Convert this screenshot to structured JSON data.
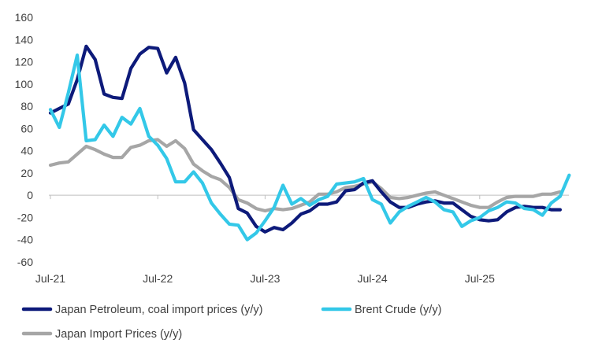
{
  "chart_data": {
    "type": "line",
    "title": "",
    "xlabel": "",
    "ylabel": "",
    "ylim": [
      -60,
      160
    ],
    "yticks": [
      160,
      140,
      120,
      100,
      80,
      60,
      40,
      20,
      0,
      -20,
      -40,
      -60
    ],
    "xticks": [
      {
        "label": "Jul-21",
        "x": 0
      },
      {
        "label": "Jul-22",
        "x": 12
      },
      {
        "label": "Jul-23",
        "x": 24
      },
      {
        "label": "Jul-24",
        "x": 36
      },
      {
        "label": "Jul-25",
        "x": 48
      }
    ],
    "x_range": [
      0,
      56
    ],
    "legend": [
      {
        "name": "Japan Petroleum, coal import prices (y/y)",
        "color": "#0d1a7a"
      },
      {
        "name": "Brent Crude (y/y)",
        "color": "#33c8e8"
      },
      {
        "name": "Japan Import Prices (y/y)",
        "color": "#a6a6a6"
      }
    ],
    "series": [
      {
        "name": "Japan Petroleum, coal import prices (y/y)",
        "color": "#0d1a7a",
        "x_start": 0,
        "values": [
          74,
          78,
          82,
          104,
          134,
          122,
          91,
          88,
          87,
          114,
          127,
          133,
          132,
          110,
          124,
          101,
          59,
          50,
          41,
          29,
          16,
          -12,
          -16,
          -28,
          -33,
          -29,
          -31,
          -25,
          -17,
          -14,
          -8,
          -8,
          -6,
          4,
          5,
          11,
          13,
          3,
          -6,
          -11,
          -11,
          -8,
          -6,
          -5,
          -7,
          -7,
          -13,
          -19,
          -22,
          -23,
          -22,
          -15,
          -11,
          -10,
          -11,
          -11,
          -13,
          -13
        ]
      },
      {
        "name": "Brent Crude (y/y)",
        "color": "#33c8e8",
        "x_start": 0,
        "values": [
          77,
          61,
          92,
          126,
          49,
          50,
          63,
          53,
          70,
          64,
          78,
          53,
          45,
          33,
          12,
          12,
          21,
          11,
          -7,
          -17,
          -26,
          -27,
          -40,
          -34,
          -23,
          -11,
          9,
          -8,
          -3,
          -9,
          -4,
          -1,
          10,
          11,
          12,
          15,
          -4,
          -8,
          -25,
          -15,
          -10,
          -6,
          -2,
          -6,
          -13,
          -15,
          -28,
          -23,
          -20,
          -14,
          -11,
          -6,
          -7,
          -12,
          -13,
          -18,
          -7,
          -1,
          18
        ]
      },
      {
        "name": "Japan Import Prices (y/y)",
        "color": "#a6a6a6",
        "x_start": 0,
        "values": [
          27,
          29,
          30,
          37,
          44,
          41,
          37,
          34,
          34,
          43,
          45,
          49,
          50,
          44,
          49,
          42,
          28,
          22,
          17,
          14,
          7,
          -4,
          -7,
          -12,
          -14,
          -12,
          -13,
          -12,
          -9,
          -6,
          1,
          1,
          3,
          7,
          8,
          10,
          12,
          6,
          -2,
          -3,
          -2,
          0,
          2,
          3,
          0,
          -3,
          -6,
          -9,
          -11,
          -11,
          -6,
          -2,
          -1,
          -1,
          -1,
          1,
          1,
          3
        ]
      }
    ]
  }
}
